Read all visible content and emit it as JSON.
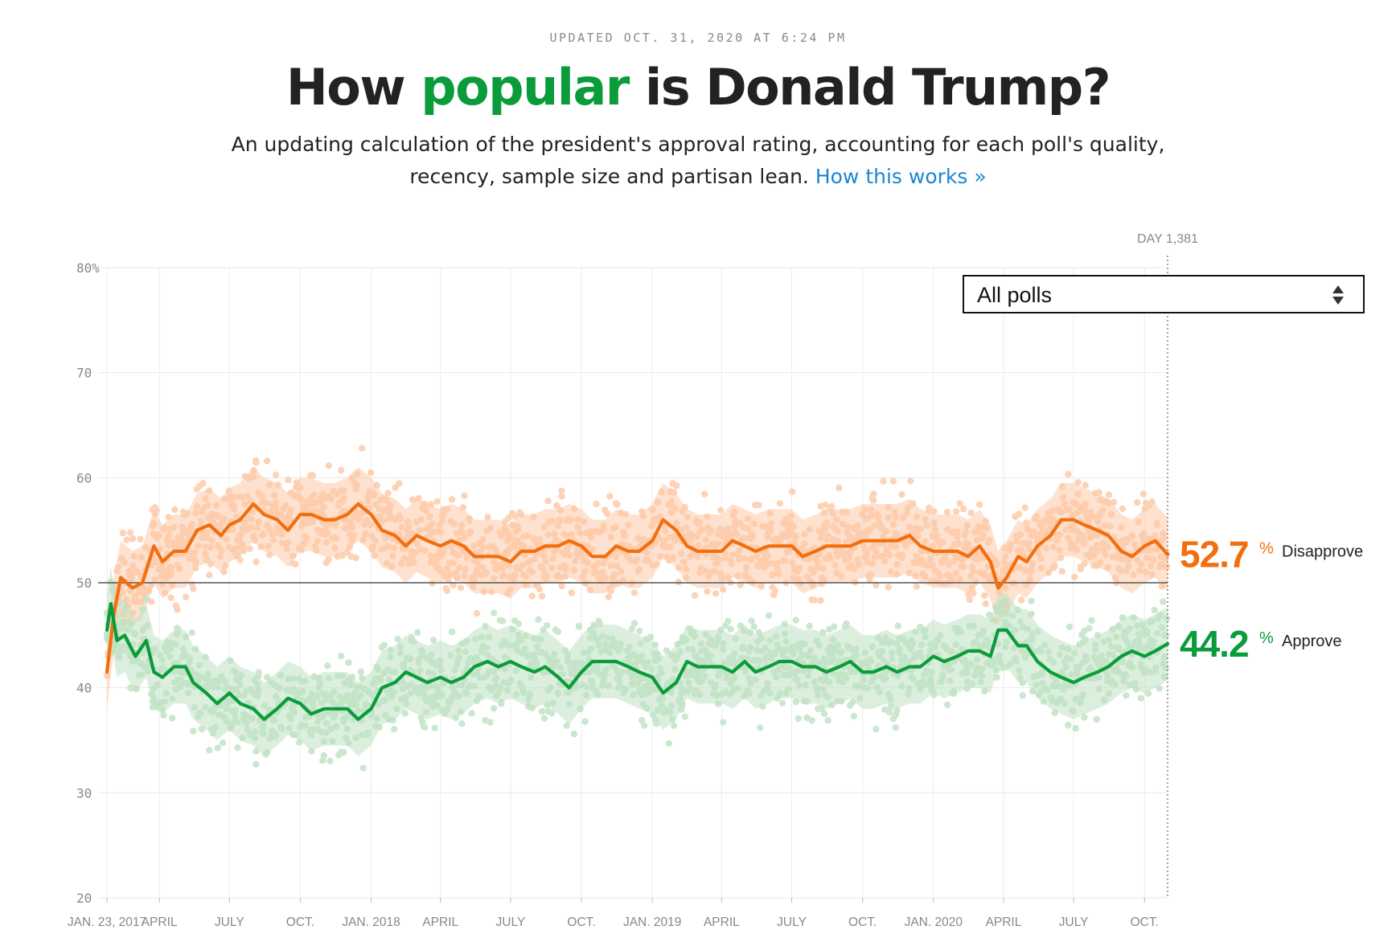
{
  "header": {
    "updated": "UPDATED OCT. 31, 2020 AT 6:24 PM",
    "title_pre": "How ",
    "title_highlight": "popular",
    "title_post": " is Donald Trump?",
    "subtitle_line1": "An updating calculation of the president's approval rating, accounting for each poll's quality,",
    "subtitle_line2": "recency, sample size and partisan lean. ",
    "link": "How this works »"
  },
  "controls": {
    "poll_filter": {
      "selected": "All polls"
    }
  },
  "colors": {
    "approve": "#0a9c3a",
    "disapprove": "#f26e0e",
    "approve_light": "#bfe2c3",
    "disapprove_light": "#fdc9a6",
    "highlight": "#0a9c3a",
    "link": "#1a86d1"
  },
  "chart_data": {
    "type": "line",
    "day_marker": "DAY 1,381",
    "y_tick_labels": [
      "80%",
      "70",
      "60",
      "50",
      "40",
      "30",
      "20"
    ],
    "y_ticks": [
      80,
      70,
      60,
      50,
      40,
      30,
      20
    ],
    "ylim": [
      20,
      80
    ],
    "reference_line": 50,
    "grid": true,
    "x_tick_labels": [
      "JAN. 23, 2017",
      "APRIL",
      "JULY",
      "OCT.",
      "JAN. 2018",
      "APRIL",
      "JULY",
      "OCT.",
      "JAN. 2019",
      "APRIL",
      "JULY",
      "OCT.",
      "JAN. 2020",
      "APRIL",
      "JULY",
      "OCT."
    ],
    "x_tick_dates": [
      "2017-01-23",
      "2017-04-01",
      "2017-07-01",
      "2017-10-01",
      "2018-01-01",
      "2018-04-01",
      "2018-07-01",
      "2018-10-01",
      "2019-01-01",
      "2019-04-01",
      "2019-07-01",
      "2019-10-01",
      "2020-01-01",
      "2020-04-01",
      "2020-07-01",
      "2020-10-01"
    ],
    "x_range": [
      "2017-01-23",
      "2020-10-31"
    ],
    "series": [
      {
        "name": "Disapprove",
        "final_value": "52.7",
        "band_width": 3.5,
        "points": [
          [
            "2017-01-23",
            41.5
          ],
          [
            "2017-02-01",
            47
          ],
          [
            "2017-02-10",
            50.5
          ],
          [
            "2017-02-25",
            49.5
          ],
          [
            "2017-03-10",
            50
          ],
          [
            "2017-03-25",
            53.5
          ],
          [
            "2017-04-05",
            52
          ],
          [
            "2017-04-20",
            53
          ],
          [
            "2017-05-05",
            53
          ],
          [
            "2017-05-20",
            55
          ],
          [
            "2017-06-05",
            55.5
          ],
          [
            "2017-06-20",
            54.5
          ],
          [
            "2017-07-01",
            55.5
          ],
          [
            "2017-07-15",
            56
          ],
          [
            "2017-08-01",
            57.5
          ],
          [
            "2017-08-15",
            56.5
          ],
          [
            "2017-09-01",
            56
          ],
          [
            "2017-09-15",
            55
          ],
          [
            "2017-10-01",
            56.5
          ],
          [
            "2017-10-15",
            56.5
          ],
          [
            "2017-11-01",
            56
          ],
          [
            "2017-11-15",
            56
          ],
          [
            "2017-12-01",
            56.5
          ],
          [
            "2017-12-15",
            57.5
          ],
          [
            "2018-01-01",
            56.5
          ],
          [
            "2018-01-15",
            55
          ],
          [
            "2018-02-01",
            54.5
          ],
          [
            "2018-02-15",
            53.5
          ],
          [
            "2018-03-01",
            54.5
          ],
          [
            "2018-03-15",
            54
          ],
          [
            "2018-04-01",
            53.5
          ],
          [
            "2018-04-15",
            54
          ],
          [
            "2018-05-01",
            53.5
          ],
          [
            "2018-05-15",
            52.5
          ],
          [
            "2018-06-01",
            52.5
          ],
          [
            "2018-06-15",
            52.5
          ],
          [
            "2018-07-01",
            52
          ],
          [
            "2018-07-15",
            53
          ],
          [
            "2018-08-01",
            53
          ],
          [
            "2018-08-15",
            53.5
          ],
          [
            "2018-09-01",
            53.5
          ],
          [
            "2018-09-15",
            54
          ],
          [
            "2018-10-01",
            53.5
          ],
          [
            "2018-10-15",
            52.5
          ],
          [
            "2018-11-01",
            52.5
          ],
          [
            "2018-11-15",
            53.5
          ],
          [
            "2018-12-01",
            53
          ],
          [
            "2018-12-15",
            53
          ],
          [
            "2019-01-01",
            54
          ],
          [
            "2019-01-15",
            56
          ],
          [
            "2019-02-01",
            55
          ],
          [
            "2019-02-15",
            53.5
          ],
          [
            "2019-03-01",
            53
          ],
          [
            "2019-03-15",
            53
          ],
          [
            "2019-04-01",
            53
          ],
          [
            "2019-04-15",
            54
          ],
          [
            "2019-05-01",
            53.5
          ],
          [
            "2019-05-15",
            53
          ],
          [
            "2019-06-01",
            53.5
          ],
          [
            "2019-06-15",
            53.5
          ],
          [
            "2019-07-01",
            53.5
          ],
          [
            "2019-07-15",
            52.5
          ],
          [
            "2019-08-01",
            53
          ],
          [
            "2019-08-15",
            53.5
          ],
          [
            "2019-09-01",
            53.5
          ],
          [
            "2019-09-15",
            53.5
          ],
          [
            "2019-10-01",
            54
          ],
          [
            "2019-10-15",
            54
          ],
          [
            "2019-11-01",
            54
          ],
          [
            "2019-11-15",
            54
          ],
          [
            "2019-12-01",
            54.5
          ],
          [
            "2019-12-15",
            53.5
          ],
          [
            "2020-01-01",
            53
          ],
          [
            "2020-01-15",
            53
          ],
          [
            "2020-02-01",
            53
          ],
          [
            "2020-02-15",
            52.5
          ],
          [
            "2020-03-01",
            53.5
          ],
          [
            "2020-03-15",
            52
          ],
          [
            "2020-03-25",
            49.5
          ],
          [
            "2020-04-05",
            50.5
          ],
          [
            "2020-04-20",
            52.5
          ],
          [
            "2020-05-01",
            52
          ],
          [
            "2020-05-15",
            53.5
          ],
          [
            "2020-06-01",
            54.5
          ],
          [
            "2020-06-15",
            56
          ],
          [
            "2020-07-01",
            56
          ],
          [
            "2020-07-15",
            55.5
          ],
          [
            "2020-08-01",
            55
          ],
          [
            "2020-08-15",
            54.5
          ],
          [
            "2020-09-01",
            53
          ],
          [
            "2020-09-15",
            52.5
          ],
          [
            "2020-10-01",
            53.5
          ],
          [
            "2020-10-15",
            54
          ],
          [
            "2020-10-31",
            52.7
          ]
        ]
      },
      {
        "name": "Approve",
        "final_value": "44.2",
        "band_width": 3.5,
        "points": [
          [
            "2017-01-23",
            45.5
          ],
          [
            "2017-01-28",
            48
          ],
          [
            "2017-02-05",
            44.5
          ],
          [
            "2017-02-15",
            45
          ],
          [
            "2017-03-01",
            43
          ],
          [
            "2017-03-15",
            44.5
          ],
          [
            "2017-03-25",
            41.5
          ],
          [
            "2017-04-05",
            41
          ],
          [
            "2017-04-20",
            42
          ],
          [
            "2017-05-05",
            42
          ],
          [
            "2017-05-15",
            40.5
          ],
          [
            "2017-06-01",
            39.5
          ],
          [
            "2017-06-15",
            38.5
          ],
          [
            "2017-07-01",
            39.5
          ],
          [
            "2017-07-15",
            38.5
          ],
          [
            "2017-08-01",
            38
          ],
          [
            "2017-08-15",
            37
          ],
          [
            "2017-09-01",
            38
          ],
          [
            "2017-09-15",
            39
          ],
          [
            "2017-10-01",
            38.5
          ],
          [
            "2017-10-15",
            37.5
          ],
          [
            "2017-11-01",
            38
          ],
          [
            "2017-11-15",
            38
          ],
          [
            "2017-12-01",
            38
          ],
          [
            "2017-12-15",
            37
          ],
          [
            "2018-01-01",
            38
          ],
          [
            "2018-01-15",
            40
          ],
          [
            "2018-02-01",
            40.5
          ],
          [
            "2018-02-15",
            41.5
          ],
          [
            "2018-03-01",
            41
          ],
          [
            "2018-03-15",
            40.5
          ],
          [
            "2018-04-01",
            41
          ],
          [
            "2018-04-15",
            40.5
          ],
          [
            "2018-05-01",
            41
          ],
          [
            "2018-05-15",
            42
          ],
          [
            "2018-06-01",
            42.5
          ],
          [
            "2018-06-15",
            42
          ],
          [
            "2018-07-01",
            42.5
          ],
          [
            "2018-07-15",
            42
          ],
          [
            "2018-08-01",
            41.5
          ],
          [
            "2018-08-15",
            42
          ],
          [
            "2018-09-01",
            41
          ],
          [
            "2018-09-15",
            40
          ],
          [
            "2018-10-01",
            41.5
          ],
          [
            "2018-10-15",
            42.5
          ],
          [
            "2018-11-01",
            42.5
          ],
          [
            "2018-11-15",
            42.5
          ],
          [
            "2018-12-01",
            42
          ],
          [
            "2018-12-15",
            41.5
          ],
          [
            "2019-01-01",
            41
          ],
          [
            "2019-01-15",
            39.5
          ],
          [
            "2019-02-01",
            40.5
          ],
          [
            "2019-02-15",
            42.5
          ],
          [
            "2019-03-01",
            42
          ],
          [
            "2019-03-15",
            42
          ],
          [
            "2019-04-01",
            42
          ],
          [
            "2019-04-15",
            41.5
          ],
          [
            "2019-05-01",
            42.5
          ],
          [
            "2019-05-15",
            41.5
          ],
          [
            "2019-06-01",
            42
          ],
          [
            "2019-06-15",
            42.5
          ],
          [
            "2019-07-01",
            42.5
          ],
          [
            "2019-07-15",
            42
          ],
          [
            "2019-08-01",
            42
          ],
          [
            "2019-08-15",
            41.5
          ],
          [
            "2019-09-01",
            42
          ],
          [
            "2019-09-15",
            42.5
          ],
          [
            "2019-10-01",
            41.5
          ],
          [
            "2019-10-15",
            41.5
          ],
          [
            "2019-11-01",
            42
          ],
          [
            "2019-11-15",
            41.5
          ],
          [
            "2019-12-01",
            42
          ],
          [
            "2019-12-15",
            42
          ],
          [
            "2020-01-01",
            43
          ],
          [
            "2020-01-15",
            42.5
          ],
          [
            "2020-02-01",
            43
          ],
          [
            "2020-02-15",
            43.5
          ],
          [
            "2020-03-01",
            43.5
          ],
          [
            "2020-03-15",
            43
          ],
          [
            "2020-03-25",
            45.5
          ],
          [
            "2020-04-05",
            45.5
          ],
          [
            "2020-04-20",
            44
          ],
          [
            "2020-05-01",
            44
          ],
          [
            "2020-05-15",
            42.5
          ],
          [
            "2020-06-01",
            41.5
          ],
          [
            "2020-06-15",
            41
          ],
          [
            "2020-07-01",
            40.5
          ],
          [
            "2020-07-15",
            41
          ],
          [
            "2020-08-01",
            41.5
          ],
          [
            "2020-08-15",
            42
          ],
          [
            "2020-09-01",
            43
          ],
          [
            "2020-09-15",
            43.5
          ],
          [
            "2020-10-01",
            43
          ],
          [
            "2020-10-15",
            43.5
          ],
          [
            "2020-10-31",
            44.2
          ]
        ]
      }
    ]
  }
}
